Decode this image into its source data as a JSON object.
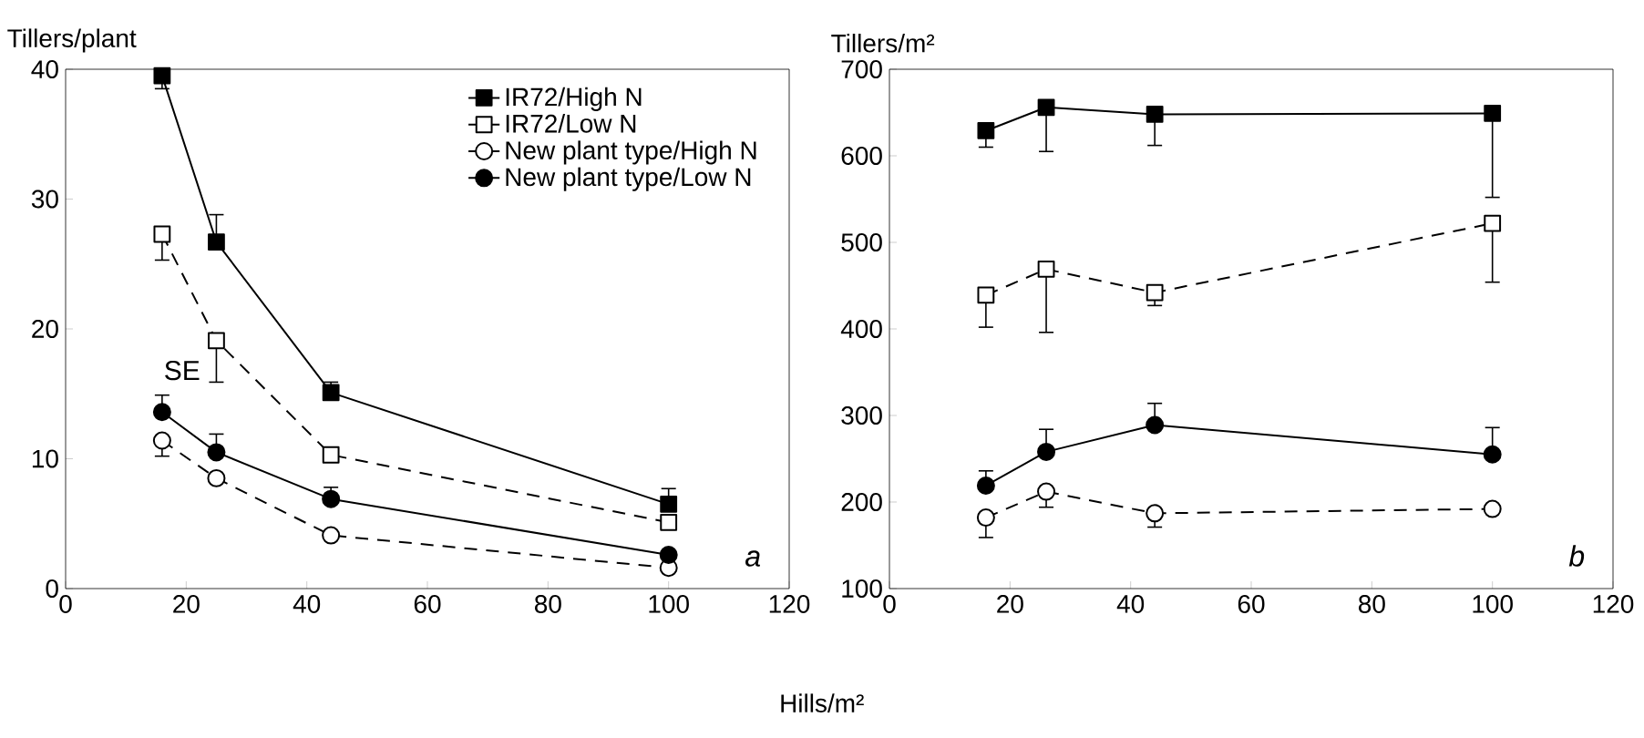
{
  "chart_data": [
    {
      "type": "line",
      "xlabel": "Hills/m²",
      "ylabel": "Tillers/plant",
      "xlim": [
        0,
        120
      ],
      "xticks": [
        0,
        20,
        40,
        60,
        80,
        100,
        120
      ],
      "ylim": [
        0,
        40
      ],
      "yticks": [
        0,
        10,
        20,
        30,
        40
      ],
      "legend": "top right",
      "x": [
        16,
        25,
        44,
        100
      ],
      "series": [
        {
          "name": "IR72/High N",
          "color": "#000000",
          "marker": "square",
          "line_style": "solid",
          "values": [
            39.5,
            26.7,
            15.1,
            6.5
          ],
          "errors": [
            [
              38.5,
              39.5
            ],
            [
              26.7,
              28.8
            ],
            [
              15.1,
              15.9
            ],
            [
              6.5,
              7.7
            ]
          ]
        },
        {
          "name": "IR72/Low N",
          "color": "#000000",
          "marker": "square",
          "line_style": "dashed",
          "values": [
            27.3,
            19.1,
            10.3,
            5.1
          ],
          "errors": [
            [
              25.3,
              27.3
            ],
            [
              15.9,
              19.1
            ],
            null,
            null
          ]
        },
        {
          "name": "New plant type/High N",
          "color": "#000000",
          "marker": "circle",
          "line_style": "dashed",
          "values": [
            11.4,
            8.5,
            4.1,
            1.6
          ],
          "errors": [
            [
              10.2,
              11.4
            ],
            null,
            null,
            null
          ]
        },
        {
          "name": "New plant type/Low N",
          "color": "#000000",
          "marker": "circle",
          "line_style": "solid",
          "values": [
            13.6,
            10.5,
            6.9,
            2.6
          ],
          "errors": [
            [
              13.6,
              14.9
            ],
            [
              10.5,
              11.9
            ],
            [
              6.9,
              7.8
            ],
            null
          ]
        }
      ],
      "annotations": [
        "SE",
        "a"
      ]
    },
    {
      "type": "line",
      "ylabel": "Tillers/m²",
      "xlim": [
        0,
        120
      ],
      "xticks": [
        0,
        20,
        40,
        60,
        80,
        100,
        120
      ],
      "ylim": [
        100,
        700
      ],
      "yticks": [
        100,
        200,
        300,
        400,
        500,
        600,
        700
      ],
      "x": [
        16,
        26,
        44,
        100
      ],
      "series": [
        {
          "color": "#000000",
          "marker": "square",
          "line_style": "solid",
          "values": [
            629,
            656,
            648,
            649
          ],
          "errors": [
            [
              610,
              629
            ],
            [
              605,
              656
            ],
            [
              612,
              648
            ],
            [
              552,
              649
            ]
          ]
        },
        {
          "color": "#000000",
          "marker": "square",
          "line_style": "dashed",
          "values": [
            439,
            469,
            442,
            522
          ],
          "errors": [
            [
              402,
              439
            ],
            [
              396,
              469
            ],
            [
              427,
              442
            ],
            [
              454,
              522
            ]
          ]
        },
        {
          "color": "#000000",
          "marker": "circle",
          "line_style": "dashed",
          "values": [
            182,
            212,
            187,
            192
          ],
          "errors": [
            [
              159,
              182
            ],
            [
              194,
              212
            ],
            [
              171,
              187
            ],
            null
          ]
        },
        {
          "color": "#000000",
          "marker": "circle",
          "line_style": "solid",
          "values": [
            219,
            258,
            289,
            255
          ],
          "errors": [
            [
              219,
              236
            ],
            [
              258,
              284
            ],
            [
              289,
              314
            ],
            [
              255,
              286
            ]
          ]
        }
      ],
      "annotations": [
        "b"
      ]
    }
  ]
}
